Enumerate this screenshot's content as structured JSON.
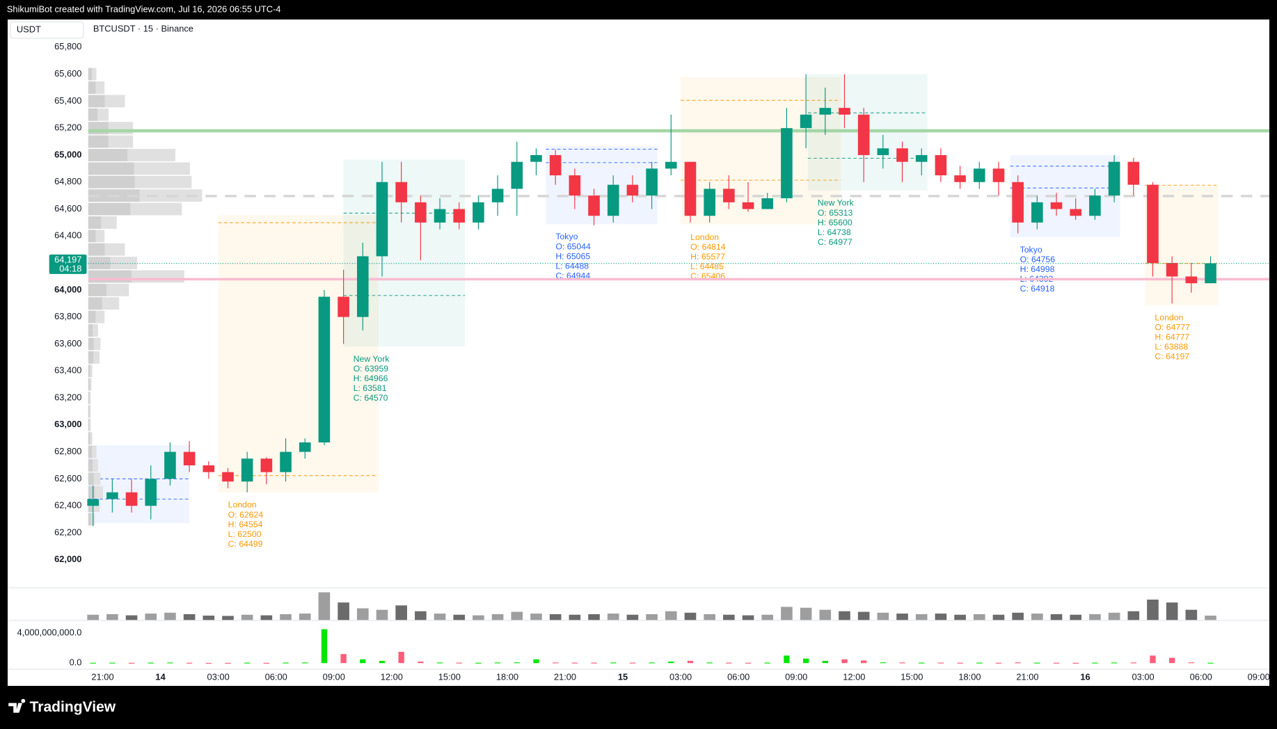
{
  "header": {
    "text": "ShikumiBot created with TradingView.com, Jul 16, 2026 06:55 UTC-4"
  },
  "footer": {
    "logo": "TradingView"
  },
  "chart_data": {
    "type": "candlestick",
    "currency": "USDT",
    "symbol": "BTCUSDT · 15 · Binance",
    "up_color": "#089981",
    "down_color": "#f23645",
    "ylim": [
      61795,
      66005
    ],
    "yticks": [
      {
        "value": 62000,
        "label": "62,000"
      },
      {
        "value": 62200,
        "label": "62,200"
      },
      {
        "value": 62400,
        "label": "62,400"
      },
      {
        "value": 62600,
        "label": "62,600"
      },
      {
        "value": 62800,
        "label": "62,800"
      },
      {
        "value": 63000,
        "label": "63,000"
      },
      {
        "value": 63200,
        "label": "63,200"
      },
      {
        "value": 63400,
        "label": "63,400"
      },
      {
        "value": 63600,
        "label": "63,600"
      },
      {
        "value": 63800,
        "label": "63,800"
      },
      {
        "value": 64000,
        "label": "64,000"
      },
      {
        "value": 64200,
        "label": "64,200"
      },
      {
        "value": 64400,
        "label": "64,400"
      },
      {
        "value": 64600,
        "label": "64,600"
      },
      {
        "value": 64800,
        "label": "64,800"
      },
      {
        "value": 65000,
        "label": "65,000"
      },
      {
        "value": 65200,
        "label": "65,200"
      },
      {
        "value": 65400,
        "label": "65,400"
      },
      {
        "value": 65600,
        "label": "65,600"
      },
      {
        "value": 65800,
        "label": "65,800"
      }
    ],
    "xlim": [
      -3.93,
      61.55
    ],
    "xticks": [
      {
        "value": 1,
        "label": "21:00"
      },
      {
        "value": 4,
        "label": "14"
      },
      {
        "value": 7,
        "label": "03:00"
      },
      {
        "value": 10,
        "label": "06:00"
      },
      {
        "value": 13,
        "label": "09:00"
      },
      {
        "value": 16,
        "label": "12:00"
      },
      {
        "value": 19,
        "label": "15:00"
      },
      {
        "value": 22,
        "label": "18:00"
      },
      {
        "value": 25,
        "label": "21:00"
      },
      {
        "value": 28,
        "label": "15"
      },
      {
        "value": 31,
        "label": "03:00"
      },
      {
        "value": 34,
        "label": "06:00"
      },
      {
        "value": 37,
        "label": "09:00"
      },
      {
        "value": 40,
        "label": "12:00"
      },
      {
        "value": 43,
        "label": "15:00"
      },
      {
        "value": 46,
        "label": "18:00"
      },
      {
        "value": 49,
        "label": "21:00"
      },
      {
        "value": 52,
        "label": "16"
      },
      {
        "value": 55,
        "label": "03:00"
      },
      {
        "value": 58,
        "label": "06:00"
      },
      {
        "value": 61,
        "label": "09:00"
      }
    ],
    "open": [
      62400,
      62450,
      62500,
      62400,
      62600,
      62800,
      62700,
      62650,
      62580,
      62750,
      62650,
      62800,
      62870,
      63950,
      63800,
      64250,
      64800,
      64650,
      64500,
      64600,
      64500,
      64650,
      64750,
      64950,
      65000,
      64850,
      64700,
      64550,
      64780,
      64700,
      64900,
      64950,
      64550,
      64750,
      64650,
      64600,
      64680,
      65200,
      65300,
      65350,
      65300,
      65000,
      65050,
      64950,
      65000,
      64850,
      64800,
      64900,
      64800,
      64500,
      64650,
      64600,
      64550,
      64700,
      64950,
      64780,
      64200,
      64100,
      64050
    ],
    "high": [
      62550,
      62600,
      62600,
      62700,
      62870,
      62880,
      62730,
      62680,
      62800,
      62760,
      62900,
      62900,
      64000,
      64150,
      64350,
      64950,
      64950,
      64700,
      64680,
      64650,
      64700,
      64850,
      65100,
      65050,
      65040,
      64900,
      64750,
      64850,
      64850,
      64950,
      65300,
      64950,
      64800,
      64850,
      64800,
      64720,
      65350,
      65600,
      65500,
      65600,
      65350,
      65150,
      65100,
      65050,
      65050,
      64920,
      64950,
      64950,
      64850,
      64700,
      64720,
      64680,
      64750,
      65000,
      64980,
      64800,
      64250,
      64200,
      64250
    ],
    "low": [
      62250,
      62350,
      62350,
      62300,
      62550,
      62650,
      62600,
      62530,
      62500,
      62560,
      62580,
      62750,
      62850,
      63600,
      63700,
      64100,
      64500,
      64220,
      64450,
      64450,
      64450,
      64550,
      64550,
      64850,
      64780,
      64600,
      64480,
      64500,
      64650,
      64600,
      64850,
      64500,
      64500,
      64600,
      64580,
      64600,
      64650,
      65050,
      65150,
      65200,
      64800,
      64900,
      64800,
      64850,
      64800,
      64750,
      64750,
      64700,
      64420,
      64450,
      64550,
      64520,
      64520,
      64650,
      64700,
      64100,
      63900,
      63980,
      64050
    ],
    "close": [
      62450,
      62500,
      62400,
      62600,
      62800,
      62700,
      62650,
      62580,
      62750,
      62650,
      62800,
      62870,
      63950,
      63800,
      64250,
      64800,
      64650,
      64500,
      64600,
      64500,
      64650,
      64750,
      64950,
      65000,
      64850,
      64700,
      64550,
      64780,
      64700,
      64900,
      64950,
      64550,
      64750,
      64650,
      64600,
      64680,
      65200,
      65300,
      65350,
      65300,
      65000,
      65050,
      64950,
      65000,
      64850,
      64800,
      64900,
      64800,
      64500,
      64650,
      64600,
      64550,
      64700,
      64950,
      64780,
      64200,
      64100,
      64050,
      64197
    ],
    "volume": [
      18,
      20,
      16,
      22,
      25,
      20,
      15,
      14,
      18,
      16,
      20,
      22,
      95,
      60,
      40,
      35,
      50,
      30,
      22,
      18,
      16,
      20,
      28,
      22,
      20,
      18,
      20,
      22,
      18,
      20,
      30,
      25,
      20,
      18,
      16,
      18,
      45,
      42,
      35,
      30,
      28,
      25,
      22,
      20,
      22,
      18,
      20,
      18,
      25,
      22,
      20,
      18,
      20,
      25,
      30,
      70,
      60,
      35,
      15
    ],
    "indicator": {
      "ylim": [
        -757000000,
        5730000000
      ],
      "yticks": [
        {
          "value": 0,
          "label": "0.0"
        },
        {
          "value": 4000000000,
          "label": "4,000,000,000.0"
        }
      ],
      "values": [
        50000000,
        60000000,
        40000000,
        60000000,
        80000000,
        50000000,
        30000000,
        30000000,
        60000000,
        40000000,
        70000000,
        80000000,
        4500000000,
        1200000000,
        500000000,
        300000000,
        1500000000,
        200000000,
        80000000,
        60000000,
        50000000,
        80000000,
        100000000,
        500000000,
        80000000,
        60000000,
        60000000,
        80000000,
        60000000,
        80000000,
        200000000,
        300000000,
        80000000,
        60000000,
        50000000,
        60000000,
        1000000000,
        600000000,
        300000000,
        500000000,
        350000000,
        100000000,
        80000000,
        60000000,
        70000000,
        50000000,
        60000000,
        50000000,
        90000000,
        60000000,
        50000000,
        40000000,
        60000000,
        80000000,
        80000000,
        1000000000,
        700000000,
        100000000,
        50000000
      ]
    },
    "volume_profile": {
      "prices": [
        65600,
        65500,
        65400,
        65300,
        65200,
        65100,
        65000,
        64900,
        64800,
        64700,
        64600,
        64500,
        64400,
        64300,
        64200,
        64100,
        64000,
        63900,
        63800,
        63700,
        63600,
        63500,
        63400,
        63300,
        63200,
        63100,
        63000,
        62900,
        62800,
        62700,
        62600,
        62500,
        62400,
        62300
      ],
      "values": [
        10,
        20,
        45,
        25,
        55,
        55,
        107,
        125,
        127,
        140,
        115,
        35,
        20,
        45,
        60,
        118,
        50,
        38,
        20,
        12,
        15,
        14,
        5,
        4,
        3,
        3,
        3,
        5,
        10,
        12,
        15,
        18,
        14,
        8
      ]
    },
    "levels": [
      {
        "value": 65180,
        "color": "#a5d6a7",
        "width": 4,
        "dash": ""
      },
      {
        "value": 64080,
        "color": "#f8bbd0",
        "width": 3,
        "dash": ""
      },
      {
        "value": 64696,
        "color": "#d6d6d6",
        "width": 3,
        "dash": "14,10"
      }
    ],
    "price_label": {
      "value": 64197,
      "label": "64,197",
      "countdown": "04:18",
      "color": "#089981"
    },
    "sessions": [
      {
        "color": "#2962ff",
        "x": [
          0.25,
          5.5
        ],
        "ohlc": [
          62450,
          62850,
          62270,
          62600
        ]
      },
      {
        "name": "London",
        "color": "#ff9800",
        "x": [
          7,
          15.3
        ],
        "ohlc": [
          62624,
          64554,
          62500,
          64499
        ],
        "ohlc_labels": [
          "O: 62624",
          "H: 64554",
          "L: 62500",
          "C: 64499"
        ]
      },
      {
        "name": "New York",
        "color": "#089981",
        "x": [
          13.5,
          19.8
        ],
        "ohlc": [
          63959,
          64966,
          63581,
          64570
        ],
        "ohlc_labels": [
          "O: 63959",
          "H: 64966",
          "L: 63581",
          "C: 64570"
        ]
      },
      {
        "name": "Tokyo",
        "color": "#2962ff",
        "x": [
          24,
          29.8
        ],
        "ohlc": [
          65044,
          65065,
          64488,
          64944
        ],
        "ohlc_labels": [
          "O: 65044",
          "H: 65065",
          "L: 64488",
          "C: 64944"
        ]
      },
      {
        "name": "London",
        "color": "#ff9800",
        "x": [
          31,
          39.3
        ],
        "ohlc": [
          64814,
          65577,
          64485,
          65406
        ],
        "ohlc_labels": [
          "O: 64814",
          "H: 65577",
          "L: 64485",
          "C: 65406"
        ]
      },
      {
        "name": "New York",
        "color": "#089981",
        "x": [
          37.6,
          43.8
        ],
        "ohlc": [
          65313,
          65600,
          64738,
          64977
        ],
        "ohlc_labels": [
          "O: 65313",
          "H: 65600",
          "L: 64738",
          "C: 64977"
        ]
      },
      {
        "name": "Tokyo",
        "color": "#2962ff",
        "x": [
          48.1,
          53.8
        ],
        "ohlc": [
          64756,
          64998,
          64392,
          64918
        ],
        "ohlc_labels": [
          "O: 64756",
          "H: 64998",
          "L: 64392",
          "C: 64918"
        ]
      },
      {
        "name": "London",
        "color": "#ff9800",
        "x": [
          55.1,
          58.9
        ],
        "ohlc": [
          64777,
          64777,
          63888,
          64197
        ],
        "ohlc_labels": [
          "O: 64777",
          "H: 64777",
          "L: 63888",
          "C: 64197"
        ]
      }
    ]
  }
}
